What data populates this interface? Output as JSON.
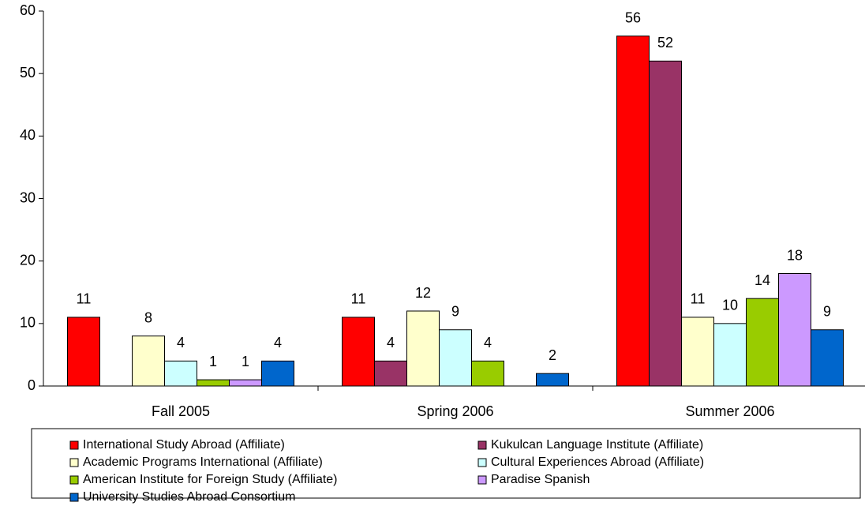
{
  "chart_data": {
    "type": "bar",
    "categories": [
      "Fall 2005",
      "Spring  2006",
      "Summer 2006"
    ],
    "series": [
      {
        "name": "International Study Abroad (Affiliate)",
        "color": "#ff0000",
        "values": [
          11,
          11,
          56
        ]
      },
      {
        "name": "Kukulcan Language Institute (Affiliate)",
        "color": "#993366",
        "values": [
          null,
          4,
          52
        ]
      },
      {
        "name": "Academic Programs International (Affiliate)",
        "color": "#ffffcc",
        "values": [
          8,
          12,
          11
        ]
      },
      {
        "name": "Cultural Experiences Abroad (Affiliate)",
        "color": "#ccffff",
        "values": [
          4,
          9,
          10
        ]
      },
      {
        "name": "American Institute for Foreign Study (Affiliate)",
        "color": "#99cc00",
        "values": [
          1,
          4,
          14
        ]
      },
      {
        "name": "Paradise Spanish",
        "color": "#cc99ff",
        "values": [
          1,
          null,
          18
        ]
      },
      {
        "name": "University Studies Abroad Consortium",
        "color": "#0066cc",
        "values": [
          4,
          2,
          9
        ]
      }
    ],
    "ylim": [
      0,
      60
    ],
    "yticks": [
      0,
      10,
      20,
      30,
      40,
      50,
      60
    ],
    "grid": false,
    "legend": "bottom"
  }
}
